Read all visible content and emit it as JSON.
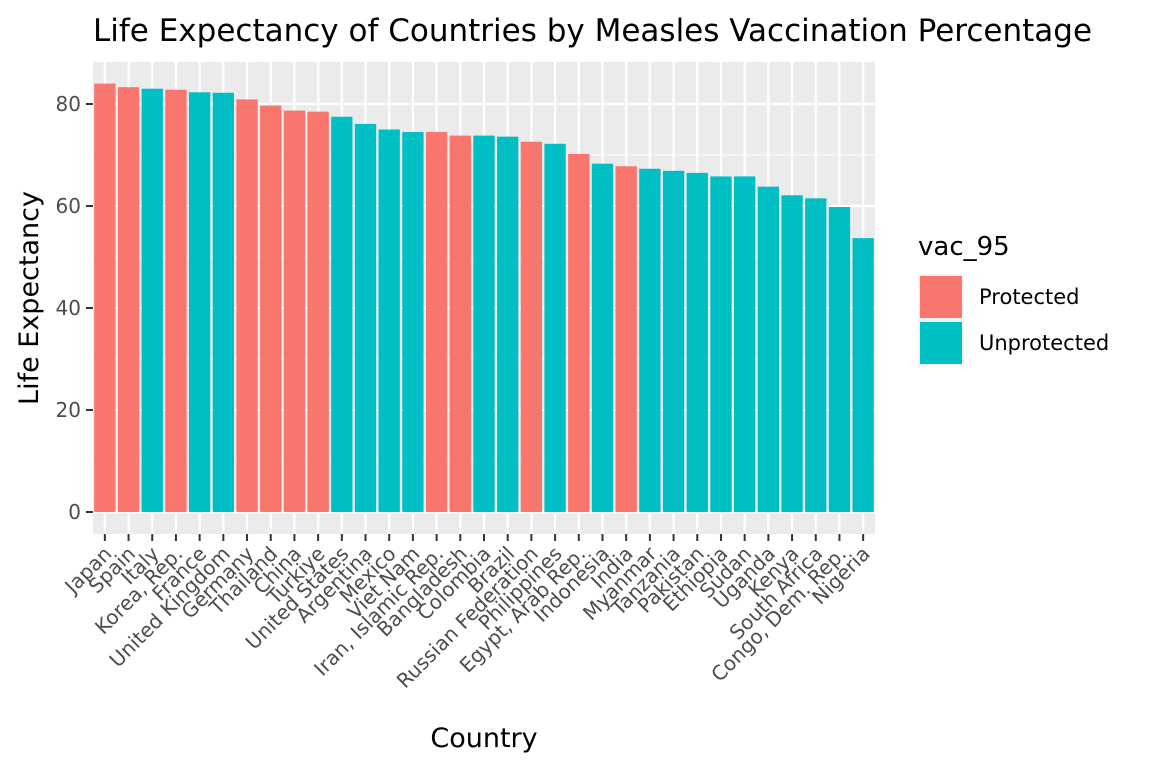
{
  "chart_data": {
    "type": "bar",
    "title": "Life Expectancy of Countries by Measles Vaccination Percentage",
    "xlabel": "Country",
    "ylabel": "Life Expectancy",
    "ylim": [
      0,
      88
    ],
    "yticks": [
      0,
      20,
      40,
      60,
      80
    ],
    "grid": true,
    "legend_position": "right",
    "legend": {
      "title": "vac_95",
      "entries": [
        {
          "name": "Protected",
          "color": "#F8766D"
        },
        {
          "name": "Unprotected",
          "color": "#00BFC4"
        }
      ]
    },
    "colors": {
      "Protected": "#F8766D",
      "Unprotected": "#00BFC4"
    },
    "categories": [
      "Japan",
      "Spain",
      "Italy",
      "Korea, Rep.",
      "France",
      "United Kingdom",
      "Germany",
      "Thailand",
      "China",
      "Turkiye",
      "United States",
      "Argentina",
      "Mexico",
      "Viet Nam",
      "Iran, Islamic Rep.",
      "Bangladesh",
      "Colombia",
      "Brazil",
      "Russian Federation",
      "Philippines",
      "Egypt, Arab Rep.",
      "Indonesia",
      "India",
      "Myanmar",
      "Tanzania",
      "Pakistan",
      "Ethiopia",
      "Sudan",
      "Uganda",
      "Kenya",
      "South Africa",
      "Congo, Dem. Rep.",
      "Nigeria"
    ],
    "values": [
      84.0,
      83.3,
      83.0,
      82.8,
      82.3,
      82.2,
      80.9,
      79.7,
      78.7,
      78.5,
      77.5,
      76.1,
      75.0,
      74.5,
      74.5,
      73.8,
      73.8,
      73.6,
      72.6,
      72.2,
      70.2,
      68.3,
      67.8,
      67.3,
      66.9,
      66.5,
      65.8,
      65.8,
      63.8,
      62.1,
      61.5,
      59.8,
      53.7
    ],
    "groups": [
      "Protected",
      "Protected",
      "Unprotected",
      "Protected",
      "Unprotected",
      "Unprotected",
      "Protected",
      "Protected",
      "Protected",
      "Protected",
      "Unprotected",
      "Unprotected",
      "Unprotected",
      "Unprotected",
      "Protected",
      "Protected",
      "Unprotected",
      "Unprotected",
      "Protected",
      "Unprotected",
      "Protected",
      "Unprotected",
      "Protected",
      "Unprotected",
      "Unprotected",
      "Unprotected",
      "Unprotected",
      "Unprotected",
      "Unprotected",
      "Unprotected",
      "Unprotected",
      "Unprotected",
      "Unprotected"
    ]
  }
}
